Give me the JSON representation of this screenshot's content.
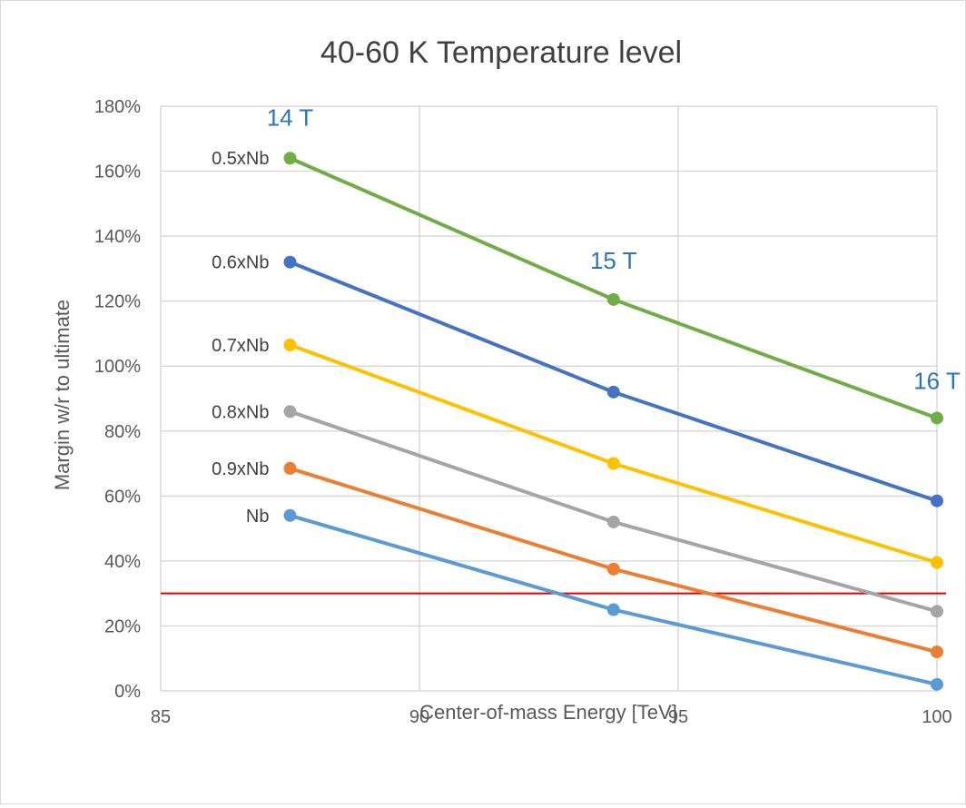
{
  "chart_data": {
    "type": "line",
    "title": "40-60 K Temperature level",
    "xlabel": "Center-of-mass Energy [TeV]",
    "ylabel": "Margin w/r to ultimate",
    "xlim": [
      85,
      100
    ],
    "ylim": [
      0,
      180
    ],
    "x_ticks": [
      85,
      90,
      95,
      100
    ],
    "y_ticks": [
      0,
      20,
      40,
      60,
      80,
      100,
      120,
      140,
      160,
      180
    ],
    "y_tick_format": "percent",
    "grid": true,
    "legend": "none",
    "x": [
      87.5,
      93.75,
      100
    ],
    "series": [
      {
        "name": "0.5xNb",
        "color": "#70ad47",
        "values": [
          164,
          120.5,
          84
        ]
      },
      {
        "name": "0.6xNb",
        "color": "#4472c4",
        "values": [
          132,
          92,
          58.5
        ]
      },
      {
        "name": "0.7xNb",
        "color": "#ffc000",
        "values": [
          106.5,
          70,
          39.5
        ]
      },
      {
        "name": "0.8xNb",
        "color": "#a5a5a5",
        "values": [
          86,
          52,
          24.5
        ]
      },
      {
        "name": "0.9xNb",
        "color": "#ed7d31",
        "values": [
          68.5,
          37.5,
          12
        ]
      },
      {
        "name": "Nb",
        "color": "#5b9bd5",
        "values": [
          54,
          25,
          2
        ]
      }
    ],
    "threshold": {
      "value": 30,
      "color": "#e00000"
    },
    "annotations": [
      {
        "text": "14 T",
        "x": 87.5,
        "y": 174,
        "color": "#2e75b6"
      },
      {
        "text": "15 T",
        "x": 93.75,
        "y": 130,
        "color": "#2e75b6"
      },
      {
        "text": "16 T",
        "x": 100,
        "y": 93,
        "color": "#2e75b6"
      }
    ]
  }
}
